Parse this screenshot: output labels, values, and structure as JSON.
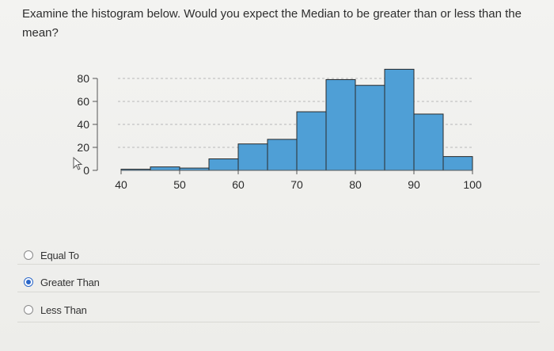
{
  "question": {
    "text": "Examine the histogram below. Would you expect the Median to be greater than or less than the mean?"
  },
  "options": [
    {
      "label": "Equal To",
      "selected": false
    },
    {
      "label": "Greater Than",
      "selected": true
    },
    {
      "label": "Less Than",
      "selected": false
    }
  ],
  "colors": {
    "bar_fill": "#4f9fd6",
    "bar_stroke": "#2b2b2b",
    "radio_selected": "#2a66c8",
    "grid": "#b8b8b8"
  },
  "chart_data": {
    "type": "bar",
    "bins": [
      {
        "start": 40,
        "end": 45,
        "value": 1
      },
      {
        "start": 45,
        "end": 50,
        "value": 3
      },
      {
        "start": 50,
        "end": 55,
        "value": 2
      },
      {
        "start": 55,
        "end": 60,
        "value": 10
      },
      {
        "start": 60,
        "end": 65,
        "value": 23
      },
      {
        "start": 65,
        "end": 70,
        "value": 27
      },
      {
        "start": 70,
        "end": 75,
        "value": 51
      },
      {
        "start": 75,
        "end": 80,
        "value": 79
      },
      {
        "start": 80,
        "end": 85,
        "value": 74
      },
      {
        "start": 85,
        "end": 90,
        "value": 88
      },
      {
        "start": 90,
        "end": 95,
        "value": 49
      },
      {
        "start": 95,
        "end": 100,
        "value": 12
      }
    ],
    "x_ticks": [
      "40",
      "50",
      "60",
      "70",
      "80",
      "90",
      "100"
    ],
    "y_ticks": [
      "0",
      "20",
      "40",
      "60",
      "80"
    ],
    "xlim": [
      40,
      100
    ],
    "ylim": [
      0,
      80
    ],
    "grid": "horizontal dashed",
    "title": "",
    "xlabel": "",
    "ylabel": ""
  }
}
